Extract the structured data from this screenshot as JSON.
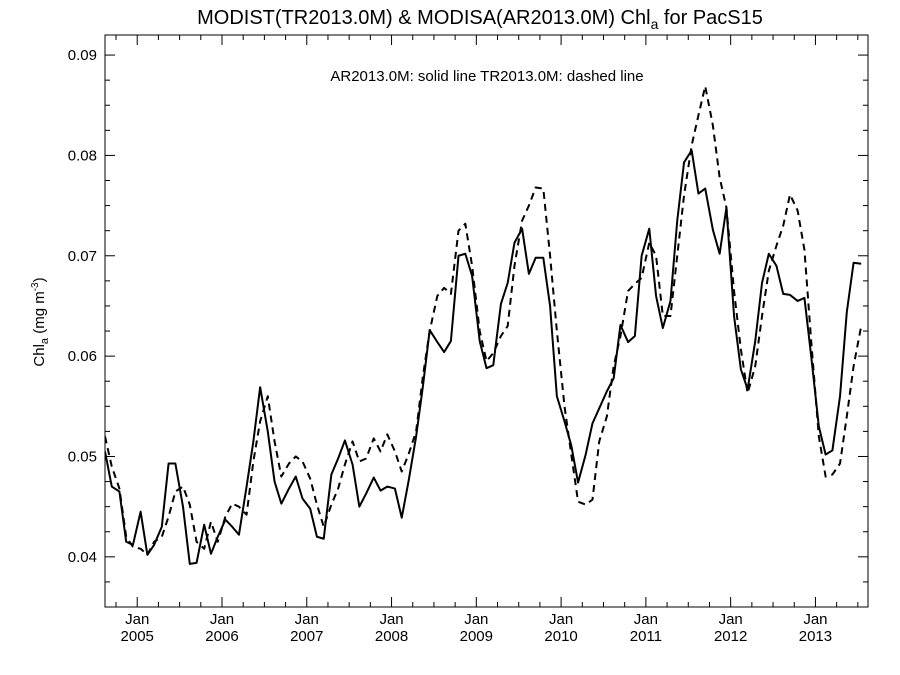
{
  "chart_data": {
    "type": "line",
    "title": {
      "prefix": "MODIST(TR2013.0M) & MODISA(AR2013.0M)  Chl",
      "subscript": "a",
      "suffix": " for PacS15"
    },
    "annotation": "AR2013.0M: solid line   TR2013.0M: dashed line",
    "ylabel": {
      "main": "Chl",
      "subscript": "a",
      "unit": " (mg m",
      "exponent": "-3",
      "close": ")"
    },
    "ylim": [
      0.035,
      0.092
    ],
    "xlim": [
      2004.62,
      2013.62
    ],
    "y_ticks": [
      {
        "value": 0.04,
        "label": "0.04"
      },
      {
        "value": 0.05,
        "label": "0.05"
      },
      {
        "value": 0.06,
        "label": "0.06"
      },
      {
        "value": 0.07,
        "label": "0.07"
      },
      {
        "value": 0.08,
        "label": "0.08"
      },
      {
        "value": 0.09,
        "label": "0.09"
      }
    ],
    "y_minor_step": 0.0025,
    "x_ticks": [
      {
        "value": 2005.0,
        "month": "Jan",
        "year": "2005"
      },
      {
        "value": 2006.0,
        "month": "Jan",
        "year": "2006"
      },
      {
        "value": 2007.0,
        "month": "Jan",
        "year": "2007"
      },
      {
        "value": 2008.0,
        "month": "Jan",
        "year": "2008"
      },
      {
        "value": 2009.0,
        "month": "Jan",
        "year": "2009"
      },
      {
        "value": 2010.0,
        "month": "Jan",
        "year": "2010"
      },
      {
        "value": 2011.0,
        "month": "Jan",
        "year": "2011"
      },
      {
        "value": 2012.0,
        "month": "Jan",
        "year": "2012"
      },
      {
        "value": 2013.0,
        "month": "Jan",
        "year": "2013"
      }
    ],
    "grid": false,
    "series": [
      {
        "name": "AR2013.0M",
        "style": "solid",
        "points": [
          [
            2004.62,
            0.0505
          ],
          [
            2004.7,
            0.047
          ],
          [
            2004.79,
            0.0465
          ],
          [
            2004.87,
            0.0415
          ],
          [
            2004.95,
            0.0412
          ],
          [
            2005.04,
            0.0445
          ],
          [
            2005.12,
            0.0402
          ],
          [
            2005.2,
            0.0412
          ],
          [
            2005.29,
            0.043
          ],
          [
            2005.37,
            0.0493
          ],
          [
            2005.45,
            0.0493
          ],
          [
            2005.54,
            0.045
          ],
          [
            2005.62,
            0.0393
          ],
          [
            2005.7,
            0.0394
          ],
          [
            2005.79,
            0.0432
          ],
          [
            2005.87,
            0.0403
          ],
          [
            2005.95,
            0.042
          ],
          [
            2006.04,
            0.0437
          ],
          [
            2006.12,
            0.043
          ],
          [
            2006.2,
            0.0422
          ],
          [
            2006.29,
            0.047
          ],
          [
            2006.37,
            0.0515
          ],
          [
            2006.45,
            0.0569
          ],
          [
            2006.54,
            0.0525
          ],
          [
            2006.62,
            0.0475
          ],
          [
            2006.7,
            0.0453
          ],
          [
            2006.79,
            0.0468
          ],
          [
            2006.87,
            0.048
          ],
          [
            2006.95,
            0.0458
          ],
          [
            2007.04,
            0.0448
          ],
          [
            2007.12,
            0.042
          ],
          [
            2007.2,
            0.0418
          ],
          [
            2007.29,
            0.0482
          ],
          [
            2007.37,
            0.0498
          ],
          [
            2007.45,
            0.0516
          ],
          [
            2007.54,
            0.0492
          ],
          [
            2007.62,
            0.045
          ],
          [
            2007.7,
            0.0463
          ],
          [
            2007.79,
            0.0479
          ],
          [
            2007.87,
            0.0466
          ],
          [
            2007.95,
            0.047
          ],
          [
            2008.04,
            0.0468
          ],
          [
            2008.12,
            0.0439
          ],
          [
            2008.2,
            0.0475
          ],
          [
            2008.29,
            0.052
          ],
          [
            2008.37,
            0.057
          ],
          [
            2008.45,
            0.0626
          ],
          [
            2008.54,
            0.0614
          ],
          [
            2008.62,
            0.0604
          ],
          [
            2008.7,
            0.0615
          ],
          [
            2008.79,
            0.07
          ],
          [
            2008.87,
            0.0702
          ],
          [
            2008.95,
            0.068
          ],
          [
            2009.04,
            0.0615
          ],
          [
            2009.12,
            0.0588
          ],
          [
            2009.2,
            0.0591
          ],
          [
            2009.29,
            0.0652
          ],
          [
            2009.37,
            0.0673
          ],
          [
            2009.45,
            0.0713
          ],
          [
            2009.54,
            0.0727
          ],
          [
            2009.62,
            0.0682
          ],
          [
            2009.7,
            0.0698
          ],
          [
            2009.79,
            0.0698
          ],
          [
            2009.87,
            0.065
          ],
          [
            2009.95,
            0.056
          ],
          [
            2010.04,
            0.0535
          ],
          [
            2010.12,
            0.0511
          ],
          [
            2010.2,
            0.0474
          ],
          [
            2010.29,
            0.0502
          ],
          [
            2010.37,
            0.0533
          ],
          [
            2010.45,
            0.0548
          ],
          [
            2010.54,
            0.0565
          ],
          [
            2010.62,
            0.0578
          ],
          [
            2010.7,
            0.0631
          ],
          [
            2010.79,
            0.0614
          ],
          [
            2010.87,
            0.062
          ],
          [
            2010.95,
            0.07
          ],
          [
            2011.04,
            0.0727
          ],
          [
            2011.12,
            0.066
          ],
          [
            2011.2,
            0.0628
          ],
          [
            2011.29,
            0.0655
          ],
          [
            2011.37,
            0.0735
          ],
          [
            2011.45,
            0.0793
          ],
          [
            2011.54,
            0.0805
          ],
          [
            2011.62,
            0.0762
          ],
          [
            2011.7,
            0.0767
          ],
          [
            2011.79,
            0.0726
          ],
          [
            2011.87,
            0.0702
          ],
          [
            2011.95,
            0.0748
          ],
          [
            2012.04,
            0.064
          ],
          [
            2012.12,
            0.0587
          ],
          [
            2012.2,
            0.0567
          ],
          [
            2012.29,
            0.0615
          ],
          [
            2012.37,
            0.0673
          ],
          [
            2012.45,
            0.0702
          ],
          [
            2012.54,
            0.069
          ],
          [
            2012.62,
            0.0662
          ],
          [
            2012.7,
            0.0661
          ],
          [
            2012.79,
            0.0655
          ],
          [
            2012.87,
            0.0658
          ],
          [
            2012.95,
            0.06
          ],
          [
            2013.04,
            0.053
          ],
          [
            2013.12,
            0.0502
          ],
          [
            2013.2,
            0.0506
          ],
          [
            2013.29,
            0.056
          ],
          [
            2013.37,
            0.0644
          ],
          [
            2013.45,
            0.0693
          ],
          [
            2013.54,
            0.0692
          ]
        ]
      },
      {
        "name": "TR2013.0M",
        "style": "dashed",
        "points": [
          [
            2004.62,
            0.052
          ],
          [
            2004.7,
            0.049
          ],
          [
            2004.79,
            0.0468
          ],
          [
            2004.87,
            0.042
          ],
          [
            2004.95,
            0.041
          ],
          [
            2005.04,
            0.0408
          ],
          [
            2005.12,
            0.0402
          ],
          [
            2005.2,
            0.0415
          ],
          [
            2005.29,
            0.042
          ],
          [
            2005.37,
            0.044
          ],
          [
            2005.45,
            0.0465
          ],
          [
            2005.54,
            0.047
          ],
          [
            2005.62,
            0.0452
          ],
          [
            2005.7,
            0.0415
          ],
          [
            2005.79,
            0.0408
          ],
          [
            2005.87,
            0.0435
          ],
          [
            2005.95,
            0.0415
          ],
          [
            2006.04,
            0.044
          ],
          [
            2006.12,
            0.0453
          ],
          [
            2006.2,
            0.045
          ],
          [
            2006.29,
            0.0442
          ],
          [
            2006.37,
            0.0495
          ],
          [
            2006.45,
            0.0535
          ],
          [
            2006.54,
            0.056
          ],
          [
            2006.62,
            0.0515
          ],
          [
            2006.7,
            0.048
          ],
          [
            2006.79,
            0.0493
          ],
          [
            2006.87,
            0.05
          ],
          [
            2006.95,
            0.0495
          ],
          [
            2007.04,
            0.0478
          ],
          [
            2007.12,
            0.0452
          ],
          [
            2007.2,
            0.043
          ],
          [
            2007.29,
            0.0452
          ],
          [
            2007.37,
            0.0468
          ],
          [
            2007.45,
            0.0492
          ],
          [
            2007.54,
            0.0515
          ],
          [
            2007.62,
            0.0495
          ],
          [
            2007.7,
            0.0498
          ],
          [
            2007.79,
            0.0518
          ],
          [
            2007.87,
            0.0505
          ],
          [
            2007.95,
            0.0522
          ],
          [
            2008.04,
            0.0505
          ],
          [
            2008.12,
            0.0485
          ],
          [
            2008.2,
            0.0502
          ],
          [
            2008.29,
            0.0525
          ],
          [
            2008.37,
            0.058
          ],
          [
            2008.45,
            0.0625
          ],
          [
            2008.54,
            0.066
          ],
          [
            2008.62,
            0.0668
          ],
          [
            2008.7,
            0.0662
          ],
          [
            2008.79,
            0.0725
          ],
          [
            2008.87,
            0.0732
          ],
          [
            2008.95,
            0.069
          ],
          [
            2009.04,
            0.0625
          ],
          [
            2009.12,
            0.0595
          ],
          [
            2009.2,
            0.0603
          ],
          [
            2009.29,
            0.062
          ],
          [
            2009.37,
            0.063
          ],
          [
            2009.45,
            0.069
          ],
          [
            2009.54,
            0.0735
          ],
          [
            2009.62,
            0.075
          ],
          [
            2009.7,
            0.0768
          ],
          [
            2009.79,
            0.0767
          ],
          [
            2009.87,
            0.07
          ],
          [
            2009.95,
            0.0625
          ],
          [
            2010.04,
            0.055
          ],
          [
            2010.12,
            0.0502
          ],
          [
            2010.2,
            0.0455
          ],
          [
            2010.29,
            0.0452
          ],
          [
            2010.37,
            0.0457
          ],
          [
            2010.45,
            0.0515
          ],
          [
            2010.54,
            0.054
          ],
          [
            2010.62,
            0.059
          ],
          [
            2010.7,
            0.062
          ],
          [
            2010.79,
            0.0665
          ],
          [
            2010.87,
            0.0672
          ],
          [
            2010.95,
            0.0678
          ],
          [
            2011.04,
            0.0713
          ],
          [
            2011.12,
            0.07
          ],
          [
            2011.2,
            0.064
          ],
          [
            2011.29,
            0.064
          ],
          [
            2011.37,
            0.07
          ],
          [
            2011.45,
            0.076
          ],
          [
            2011.54,
            0.081
          ],
          [
            2011.62,
            0.084
          ],
          [
            2011.7,
            0.0869
          ],
          [
            2011.79,
            0.083
          ],
          [
            2011.87,
            0.0778
          ],
          [
            2011.95,
            0.0748
          ],
          [
            2012.04,
            0.0665
          ],
          [
            2012.12,
            0.0607
          ],
          [
            2012.2,
            0.0563
          ],
          [
            2012.29,
            0.059
          ],
          [
            2012.37,
            0.064
          ],
          [
            2012.45,
            0.0685
          ],
          [
            2012.54,
            0.071
          ],
          [
            2012.62,
            0.073
          ],
          [
            2012.7,
            0.0761
          ],
          [
            2012.79,
            0.0745
          ],
          [
            2012.87,
            0.0706
          ],
          [
            2012.95,
            0.0615
          ],
          [
            2013.04,
            0.052
          ],
          [
            2013.12,
            0.048
          ],
          [
            2013.2,
            0.0482
          ],
          [
            2013.29,
            0.0493
          ],
          [
            2013.37,
            0.054
          ],
          [
            2013.45,
            0.059
          ],
          [
            2013.54,
            0.063
          ]
        ]
      }
    ]
  }
}
